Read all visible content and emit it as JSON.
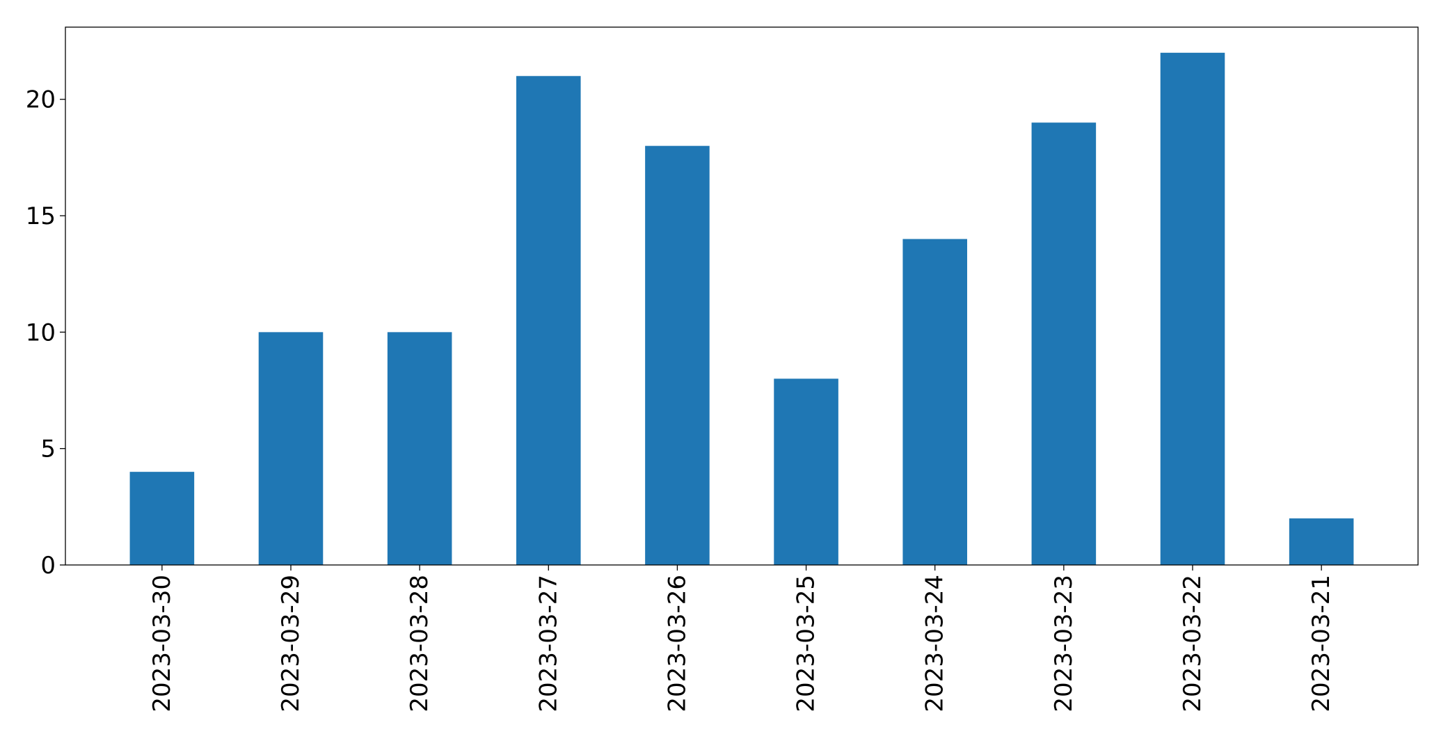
{
  "chart_data": {
    "type": "bar",
    "title": "",
    "xlabel": "",
    "ylabel": "",
    "categories": [
      "2023-03-30",
      "2023-03-29",
      "2023-03-28",
      "2023-03-27",
      "2023-03-26",
      "2023-03-25",
      "2023-03-24",
      "2023-03-23",
      "2023-03-22",
      "2023-03-21"
    ],
    "values": [
      4,
      10,
      10,
      21,
      18,
      8,
      14,
      19,
      22,
      2
    ],
    "ylim": [
      0,
      23.1
    ],
    "yticks": [
      0,
      5,
      10,
      15,
      20
    ],
    "bar_color": "#1f77b4",
    "grid": false,
    "legend": false
  }
}
